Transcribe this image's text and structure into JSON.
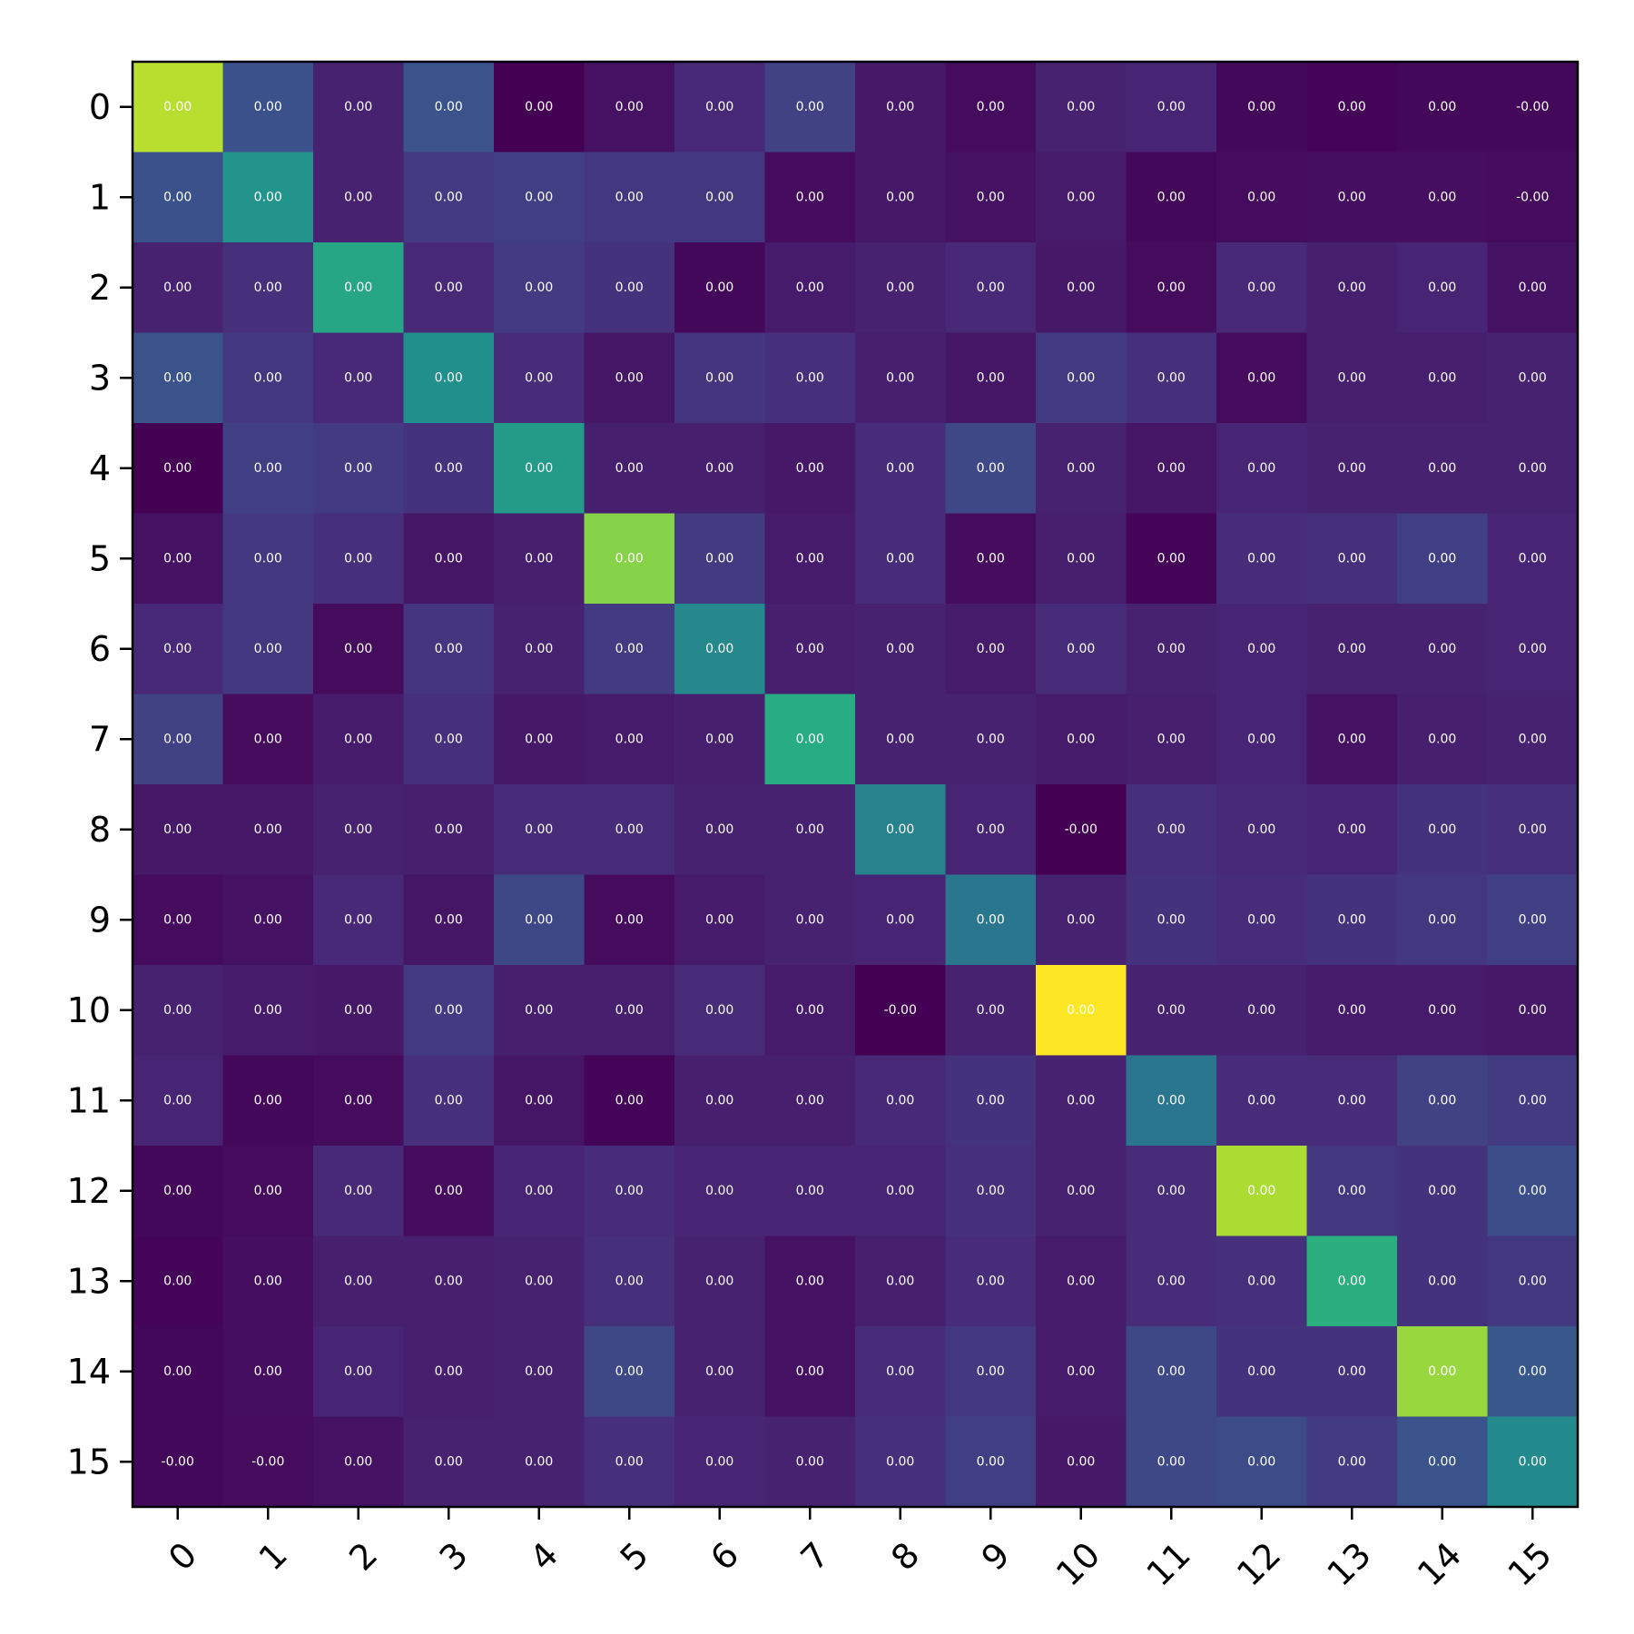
{
  "chart_data": {
    "type": "heatmap",
    "title": "",
    "xlabel": "",
    "ylabel": "",
    "x_categories": [
      "0",
      "1",
      "2",
      "3",
      "4",
      "5",
      "6",
      "7",
      "8",
      "9",
      "10",
      "11",
      "12",
      "13",
      "14",
      "15"
    ],
    "y_categories": [
      "0",
      "1",
      "2",
      "3",
      "4",
      "5",
      "6",
      "7",
      "8",
      "9",
      "10",
      "11",
      "12",
      "13",
      "14",
      "15"
    ],
    "colormap": "viridis",
    "color_range": [
      0,
      1
    ],
    "grid": false,
    "colorbar": false,
    "intensity": [
      [
        0.9,
        0.25,
        0.1,
        0.26,
        0.0,
        0.05,
        0.12,
        0.2,
        0.07,
        0.03,
        0.1,
        0.11,
        0.02,
        0.01,
        0.02,
        0.02
      ],
      [
        0.25,
        0.52,
        0.1,
        0.18,
        0.19,
        0.17,
        0.17,
        0.03,
        0.07,
        0.05,
        0.08,
        0.02,
        0.03,
        0.04,
        0.04,
        0.03
      ],
      [
        0.1,
        0.14,
        0.6,
        0.12,
        0.18,
        0.15,
        0.02,
        0.08,
        0.1,
        0.12,
        0.07,
        0.03,
        0.12,
        0.09,
        0.11,
        0.05
      ],
      [
        0.26,
        0.17,
        0.12,
        0.5,
        0.13,
        0.06,
        0.16,
        0.14,
        0.09,
        0.06,
        0.18,
        0.14,
        0.03,
        0.09,
        0.09,
        0.1
      ],
      [
        0.0,
        0.19,
        0.18,
        0.15,
        0.55,
        0.09,
        0.09,
        0.07,
        0.13,
        0.22,
        0.1,
        0.06,
        0.11,
        0.1,
        0.1,
        0.1
      ],
      [
        0.05,
        0.17,
        0.14,
        0.06,
        0.09,
        0.82,
        0.18,
        0.08,
        0.13,
        0.03,
        0.09,
        0.01,
        0.13,
        0.14,
        0.19,
        0.11
      ],
      [
        0.12,
        0.17,
        0.03,
        0.16,
        0.1,
        0.18,
        0.47,
        0.09,
        0.1,
        0.08,
        0.13,
        0.1,
        0.11,
        0.1,
        0.1,
        0.11
      ],
      [
        0.2,
        0.03,
        0.08,
        0.14,
        0.07,
        0.08,
        0.09,
        0.63,
        0.1,
        0.1,
        0.08,
        0.09,
        0.11,
        0.05,
        0.09,
        0.1
      ],
      [
        0.07,
        0.07,
        0.1,
        0.09,
        0.13,
        0.13,
        0.1,
        0.1,
        0.45,
        0.11,
        0.0,
        0.14,
        0.12,
        0.11,
        0.15,
        0.14
      ],
      [
        0.03,
        0.05,
        0.12,
        0.06,
        0.22,
        0.03,
        0.08,
        0.1,
        0.11,
        0.4,
        0.1,
        0.15,
        0.13,
        0.15,
        0.17,
        0.19
      ],
      [
        0.1,
        0.08,
        0.07,
        0.18,
        0.09,
        0.09,
        0.13,
        0.08,
        0.0,
        0.1,
        1.0,
        0.1,
        0.1,
        0.08,
        0.08,
        0.07
      ],
      [
        0.11,
        0.02,
        0.03,
        0.14,
        0.06,
        0.01,
        0.09,
        0.09,
        0.12,
        0.15,
        0.1,
        0.4,
        0.13,
        0.13,
        0.2,
        0.18
      ],
      [
        0.02,
        0.03,
        0.12,
        0.03,
        0.11,
        0.13,
        0.11,
        0.11,
        0.11,
        0.14,
        0.1,
        0.13,
        0.88,
        0.17,
        0.15,
        0.24
      ],
      [
        0.01,
        0.04,
        0.09,
        0.09,
        0.1,
        0.14,
        0.1,
        0.05,
        0.09,
        0.13,
        0.08,
        0.13,
        0.14,
        0.64,
        0.15,
        0.17
      ],
      [
        0.02,
        0.04,
        0.11,
        0.09,
        0.1,
        0.22,
        0.1,
        0.05,
        0.13,
        0.17,
        0.08,
        0.22,
        0.15,
        0.15,
        0.85,
        0.28
      ],
      [
        0.02,
        0.03,
        0.05,
        0.1,
        0.1,
        0.14,
        0.11,
        0.1,
        0.14,
        0.19,
        0.07,
        0.22,
        0.23,
        0.18,
        0.26,
        0.48
      ]
    ],
    "annotations": [
      [
        "0.00",
        "0.00",
        "0.00",
        "0.00",
        "0.00",
        "0.00",
        "0.00",
        "0.00",
        "0.00",
        "0.00",
        "0.00",
        "0.00",
        "0.00",
        "0.00",
        "0.00",
        "-0.00"
      ],
      [
        "0.00",
        "0.00",
        "0.00",
        "0.00",
        "0.00",
        "0.00",
        "0.00",
        "0.00",
        "0.00",
        "0.00",
        "0.00",
        "0.00",
        "0.00",
        "0.00",
        "0.00",
        "-0.00"
      ],
      [
        "0.00",
        "0.00",
        "0.00",
        "0.00",
        "0.00",
        "0.00",
        "0.00",
        "0.00",
        "0.00",
        "0.00",
        "0.00",
        "0.00",
        "0.00",
        "0.00",
        "0.00",
        "0.00"
      ],
      [
        "0.00",
        "0.00",
        "0.00",
        "0.00",
        "0.00",
        "0.00",
        "0.00",
        "0.00",
        "0.00",
        "0.00",
        "0.00",
        "0.00",
        "0.00",
        "0.00",
        "0.00",
        "0.00"
      ],
      [
        "0.00",
        "0.00",
        "0.00",
        "0.00",
        "0.00",
        "0.00",
        "0.00",
        "0.00",
        "0.00",
        "0.00",
        "0.00",
        "0.00",
        "0.00",
        "0.00",
        "0.00",
        "0.00"
      ],
      [
        "0.00",
        "0.00",
        "0.00",
        "0.00",
        "0.00",
        "0.00",
        "0.00",
        "0.00",
        "0.00",
        "0.00",
        "0.00",
        "0.00",
        "0.00",
        "0.00",
        "0.00",
        "0.00"
      ],
      [
        "0.00",
        "0.00",
        "0.00",
        "0.00",
        "0.00",
        "0.00",
        "0.00",
        "0.00",
        "0.00",
        "0.00",
        "0.00",
        "0.00",
        "0.00",
        "0.00",
        "0.00",
        "0.00"
      ],
      [
        "0.00",
        "0.00",
        "0.00",
        "0.00",
        "0.00",
        "0.00",
        "0.00",
        "0.00",
        "0.00",
        "0.00",
        "0.00",
        "0.00",
        "0.00",
        "0.00",
        "0.00",
        "0.00"
      ],
      [
        "0.00",
        "0.00",
        "0.00",
        "0.00",
        "0.00",
        "0.00",
        "0.00",
        "0.00",
        "0.00",
        "0.00",
        "-0.00",
        "0.00",
        "0.00",
        "0.00",
        "0.00",
        "0.00"
      ],
      [
        "0.00",
        "0.00",
        "0.00",
        "0.00",
        "0.00",
        "0.00",
        "0.00",
        "0.00",
        "0.00",
        "0.00",
        "0.00",
        "0.00",
        "0.00",
        "0.00",
        "0.00",
        "0.00"
      ],
      [
        "0.00",
        "0.00",
        "0.00",
        "0.00",
        "0.00",
        "0.00",
        "0.00",
        "0.00",
        "-0.00",
        "0.00",
        "0.00",
        "0.00",
        "0.00",
        "0.00",
        "0.00",
        "0.00"
      ],
      [
        "0.00",
        "0.00",
        "0.00",
        "0.00",
        "0.00",
        "0.00",
        "0.00",
        "0.00",
        "0.00",
        "0.00",
        "0.00",
        "0.00",
        "0.00",
        "0.00",
        "0.00",
        "0.00"
      ],
      [
        "0.00",
        "0.00",
        "0.00",
        "0.00",
        "0.00",
        "0.00",
        "0.00",
        "0.00",
        "0.00",
        "0.00",
        "0.00",
        "0.00",
        "0.00",
        "0.00",
        "0.00",
        "0.00"
      ],
      [
        "0.00",
        "0.00",
        "0.00",
        "0.00",
        "0.00",
        "0.00",
        "0.00",
        "0.00",
        "0.00",
        "0.00",
        "0.00",
        "0.00",
        "0.00",
        "0.00",
        "0.00",
        "0.00"
      ],
      [
        "0.00",
        "0.00",
        "0.00",
        "0.00",
        "0.00",
        "0.00",
        "0.00",
        "0.00",
        "0.00",
        "0.00",
        "0.00",
        "0.00",
        "0.00",
        "0.00",
        "0.00",
        "0.00"
      ],
      [
        "-0.00",
        "-0.00",
        "0.00",
        "0.00",
        "0.00",
        "0.00",
        "0.00",
        "0.00",
        "0.00",
        "0.00",
        "0.00",
        "0.00",
        "0.00",
        "0.00",
        "0.00",
        "0.00"
      ]
    ]
  }
}
